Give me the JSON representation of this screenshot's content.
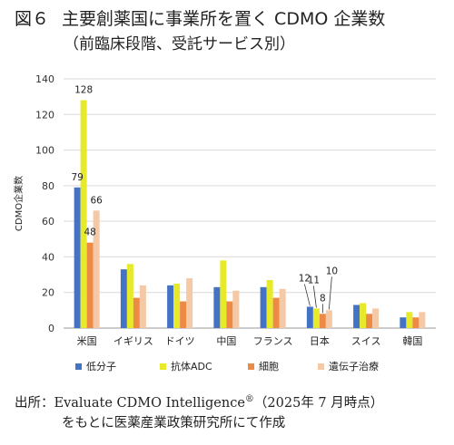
{
  "header": {
    "fig_label": "図６",
    "title": "主要創薬国に事業所を置く CDMO 企業数",
    "subtitle": "（前臨床段階、受託サービス別）"
  },
  "chart_data": {
    "type": "bar",
    "title": "主要創薬国に事業所を置く CDMO 企業数",
    "subtitle": "（前臨床段階、受託サービス別）",
    "xlabel": "",
    "ylabel": "CDMO企業数",
    "ylim": [
      0,
      140
    ],
    "yticks": [
      0,
      20,
      40,
      60,
      80,
      100,
      120,
      140
    ],
    "grid": true,
    "legend_position": "bottom",
    "categories": [
      "米国",
      "イギリス",
      "ドイツ",
      "中国",
      "フランス",
      "日本",
      "スイス",
      "韓国"
    ],
    "series": [
      {
        "name": "低分子",
        "color": "#4472c4",
        "values": [
          79,
          33,
          24,
          23,
          23,
          12,
          13,
          6
        ]
      },
      {
        "name": "抗体ADC",
        "color": "#e6ea2a",
        "values": [
          128,
          36,
          25,
          38,
          27,
          11,
          14,
          9
        ]
      },
      {
        "name": "細胞",
        "color": "#ed8a45",
        "values": [
          48,
          17,
          15,
          15,
          17,
          8,
          8,
          6
        ]
      },
      {
        "name": "遺伝子治療",
        "color": "#f5c8a6",
        "values": [
          66,
          24,
          28,
          21,
          22,
          10,
          11,
          9
        ]
      }
    ],
    "data_labels": [
      {
        "series": 0,
        "category": 0,
        "text": "79"
      },
      {
        "series": 1,
        "category": 0,
        "text": "128"
      },
      {
        "series": 2,
        "category": 0,
        "text": "48"
      },
      {
        "series": 3,
        "category": 0,
        "text": "66"
      },
      {
        "series": 0,
        "category": 5,
        "text": "12"
      },
      {
        "series": 1,
        "category": 5,
        "text": "11"
      },
      {
        "series": 2,
        "category": 5,
        "text": "8"
      },
      {
        "series": 3,
        "category": 5,
        "text": "10"
      }
    ]
  },
  "footer": {
    "line1": "出所：Evaluate CDMO Intelligence",
    "reg": "®",
    "line1_tail": "（2025年 7 月時点）",
    "line2": "をもとに医薬産業政策研究所にて作成"
  }
}
